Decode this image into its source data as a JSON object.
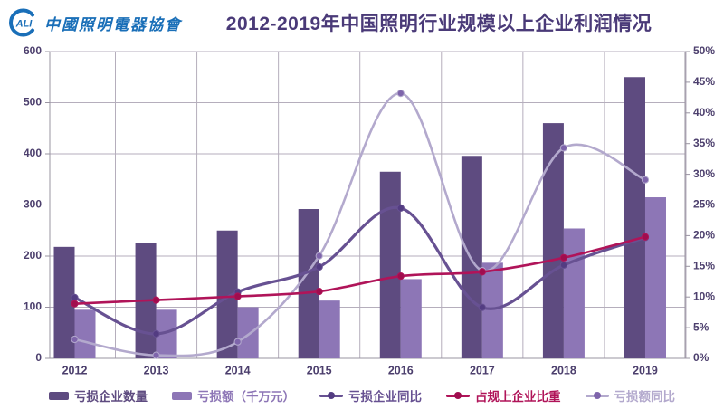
{
  "header": {
    "logo": {
      "emblem_letters": "ALI",
      "org_name": "中國照明電器協會"
    },
    "title": "2012-2019年中国照明行业规模以上企业利润情况"
  },
  "colors": {
    "title_text": "#4a3a78",
    "axis_text": "#4c3f6d",
    "gridline": "#b5aebc",
    "axis_line": "#9a94a2",
    "logo_blue": "#1a6fb8"
  },
  "chart_data": {
    "type": "combo-bar-line",
    "title": "2012-2019年中国照明行业规模以上企业利润情况",
    "categories": [
      "2012",
      "2013",
      "2014",
      "2015",
      "2016",
      "2017",
      "2018",
      "2019"
    ],
    "left_axis": {
      "min": 0,
      "max": 600,
      "step": 100,
      "ticks": [
        "0",
        "100",
        "200",
        "300",
        "400",
        "500",
        "600"
      ]
    },
    "right_axis": {
      "min": 0,
      "max": 50,
      "step": 5,
      "ticks": [
        "0%",
        "5%",
        "10%",
        "15%",
        "20%",
        "25%",
        "30%",
        "35%",
        "40%",
        "45%",
        "50%"
      ]
    },
    "grid": true,
    "legend_position": "bottom",
    "series": [
      {
        "name": "亏损企业数量",
        "type": "bar",
        "axis": "left",
        "color": "#5e4b80",
        "values": [
          218,
          225,
          250,
          292,
          365,
          396,
          460,
          550
        ]
      },
      {
        "name": "亏损额（千万元）",
        "type": "bar",
        "axis": "left",
        "color": "#8d76b6",
        "values": [
          95,
          95,
          100,
          113,
          155,
          187,
          254,
          315
        ]
      },
      {
        "name": "亏损企业同比",
        "type": "line",
        "axis": "right",
        "color": "#675192",
        "marker_color": "#533c82",
        "values": [
          9.9,
          4.0,
          10.8,
          14.9,
          24.5,
          8.3,
          15.2,
          19.7
        ]
      },
      {
        "name": "占规上企业比重",
        "type": "line",
        "axis": "right",
        "color": "#b01459",
        "marker_color": "#a00d4e",
        "values": [
          8.9,
          9.5,
          10.1,
          10.9,
          13.4,
          14.1,
          16.4,
          19.8
        ]
      },
      {
        "name": "亏损额同比",
        "type": "line",
        "axis": "right",
        "color": "#b3a9cd",
        "marker_color": "#7e64ab",
        "values": [
          3.1,
          0.5,
          2.7,
          16.7,
          43.2,
          14.3,
          34.3,
          29.1
        ]
      }
    ]
  }
}
